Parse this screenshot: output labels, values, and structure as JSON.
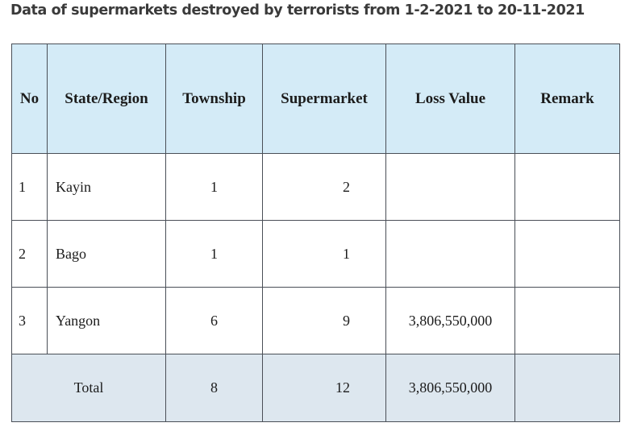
{
  "title": "Data of supermarkets destroyed by terrorists from 1-2-2021 to 20-11-2021",
  "headers": {
    "no": "No",
    "state": "State/Region",
    "township": "Township",
    "supermarket": "Supermarket",
    "loss": "Loss Value",
    "remark": "Remark"
  },
  "rows": [
    {
      "no": "1",
      "state": "Kayin",
      "township": "1",
      "supermarket": "2",
      "loss": "",
      "remark": ""
    },
    {
      "no": "2",
      "state": "Bago",
      "township": "1",
      "supermarket": "1",
      "loss": "",
      "remark": ""
    },
    {
      "no": "3",
      "state": "Yangon",
      "township": "6",
      "supermarket": "9",
      "loss": "3,806,550,000",
      "remark": ""
    }
  ],
  "total": {
    "label": "Total",
    "township": "8",
    "supermarket": "12",
    "loss": "3,806,550,000",
    "remark": ""
  }
}
